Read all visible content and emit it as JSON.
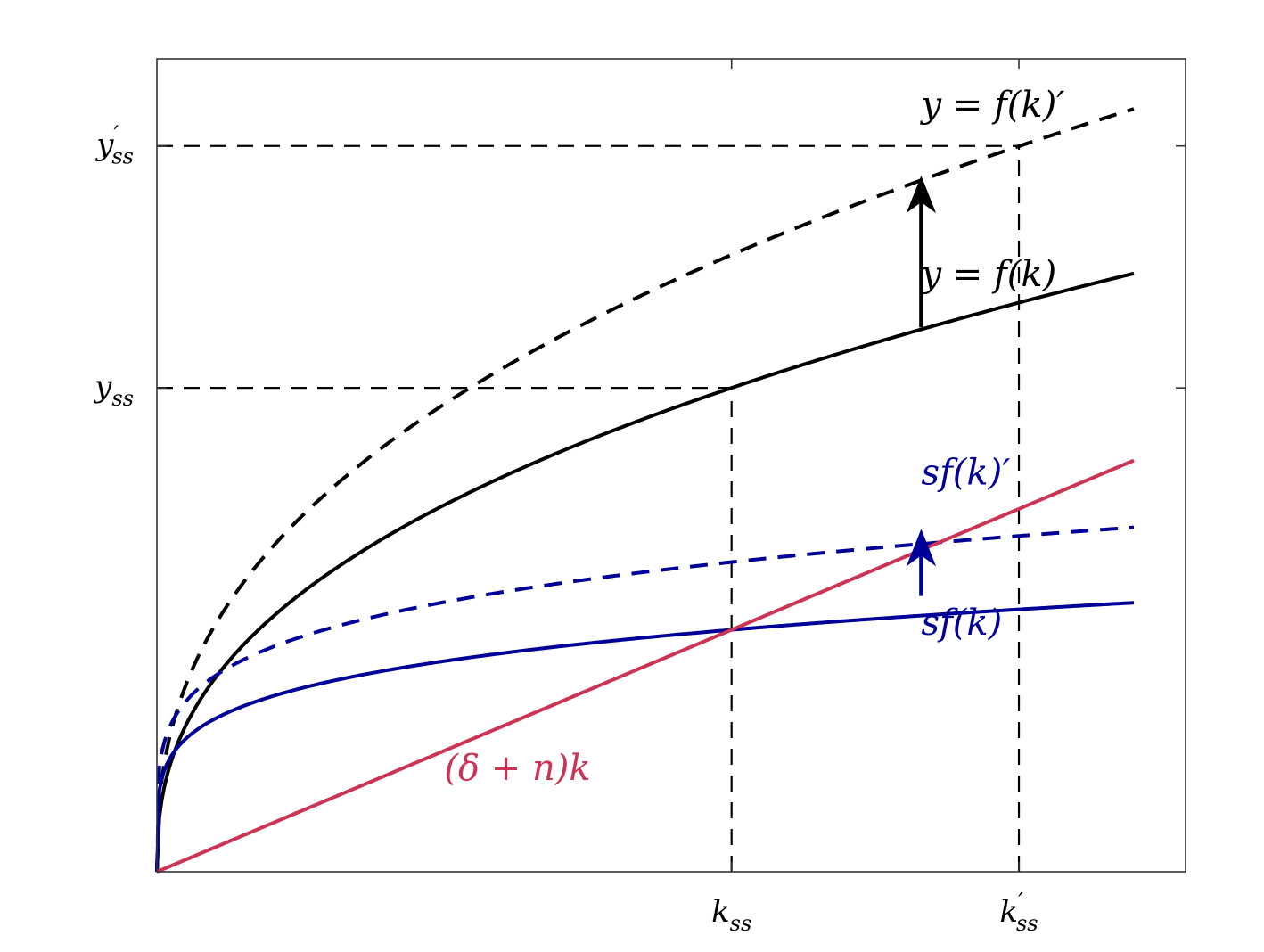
{
  "chart_data": {
    "type": "line",
    "title": "",
    "xlabel": "",
    "ylabel": "",
    "xlim": [
      0,
      1.79
    ],
    "ylim": [
      0,
      3.36
    ],
    "grid": false,
    "x_ticks": [
      {
        "value": 1.0,
        "label_main": "k",
        "label_sub": "ss",
        "label_prime": ""
      },
      {
        "value": 1.5,
        "label_main": "k",
        "label_sub": "ss",
        "label_prime": "′"
      }
    ],
    "y_ticks": [
      {
        "value": 2.0,
        "label_main": "y",
        "label_sub": "ss",
        "label_prime": ""
      },
      {
        "value": 3.0,
        "label_main": "y",
        "label_sub": "ss",
        "label_prime": "′"
      }
    ],
    "series": [
      {
        "key": "f",
        "label": "y = f(k)",
        "style": "solid",
        "color": "#000000",
        "amplitude": 2.0,
        "exponent": 0.4
      },
      {
        "key": "f_prime",
        "label": "y = f(k)′",
        "style": "dashed",
        "color": "#000000",
        "amplitude": 2.55,
        "exponent": 0.4
      },
      {
        "key": "sf",
        "label": "sf(k)",
        "style": "solid",
        "color": "#000099",
        "amplitude": 1.0,
        "exponent": 0.2
      },
      {
        "key": "sf_prime",
        "label": "sf(k)′",
        "style": "dashed",
        "color": "#000099",
        "amplitude": 1.28,
        "exponent": 0.2
      },
      {
        "key": "dep",
        "label": "(δ + n)k",
        "style": "solid",
        "color": "#cc3355",
        "slope": 1.0
      }
    ],
    "x_max_curve": 1.7,
    "guides": [
      {
        "from": [
          0,
          3.0
        ],
        "to": [
          1.5,
          3.0
        ]
      },
      {
        "from": [
          0,
          2.0
        ],
        "to": [
          1.0,
          2.0
        ]
      },
      {
        "from": [
          1.0,
          0
        ],
        "to": [
          1.0,
          2.0
        ]
      },
      {
        "from": [
          1.5,
          0
        ],
        "to": [
          1.5,
          3.0
        ]
      }
    ],
    "arrows": [
      {
        "x": 1.33,
        "y_from": 2.25,
        "y_to": 2.87,
        "color": "#000000"
      },
      {
        "x": 1.33,
        "y_from": 1.14,
        "y_to": 1.41,
        "color": "#000099"
      }
    ],
    "annotations": [
      {
        "key": "f_prime",
        "text": "y = f(k)′",
        "x": 1.33,
        "y": 3.12,
        "color": "#000000"
      },
      {
        "key": "f",
        "text": "y = f(k)",
        "x": 1.33,
        "y": 2.42,
        "color": "#000000"
      },
      {
        "key": "sf_prime",
        "text": "sf(k)′",
        "x": 1.33,
        "y": 1.6,
        "color": "#000099"
      },
      {
        "key": "sf",
        "text": "sf(k)",
        "x": 1.33,
        "y": 0.98,
        "color": "#000099"
      },
      {
        "key": "dep",
        "text": "(δ + n)k",
        "x": 0.5,
        "y": 0.38,
        "color": "#cc3355"
      }
    ]
  }
}
